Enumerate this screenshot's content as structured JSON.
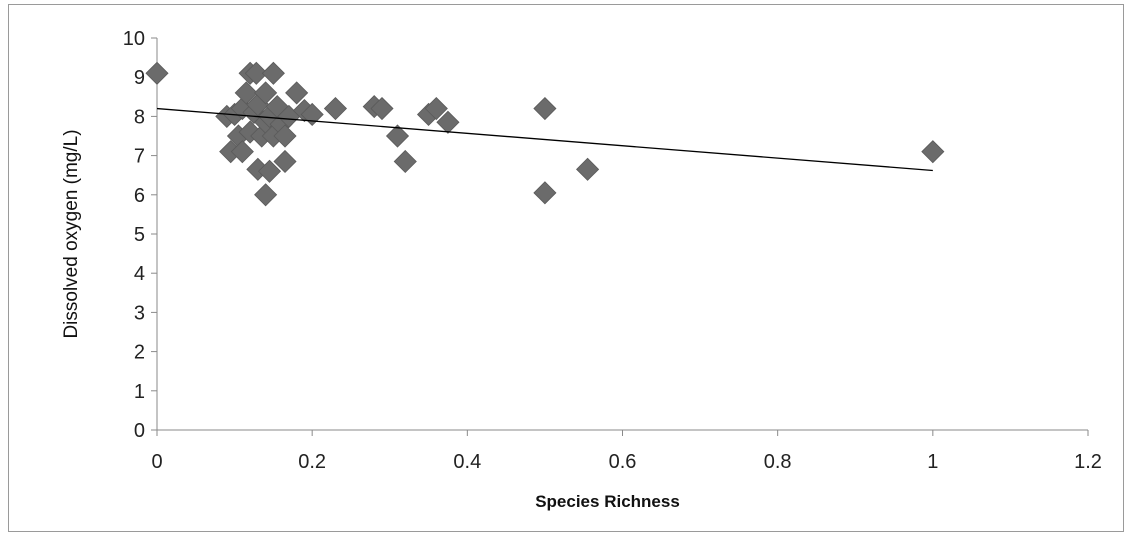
{
  "chart_data": {
    "type": "scatter",
    "title": "",
    "xlabel": "Species Richness",
    "ylabel": "Dissolved oxygen (mg/L)",
    "xlim": [
      0,
      1.2
    ],
    "ylim": [
      0,
      10
    ],
    "x_ticks": [
      "0",
      "0.2",
      "0.4",
      "0.6",
      "0.8",
      "1",
      "1.2"
    ],
    "y_ticks": [
      "0",
      "1",
      "2",
      "3",
      "4",
      "5",
      "6",
      "7",
      "8",
      "9",
      "10"
    ],
    "grid": false,
    "legend": "none",
    "marker": "diamond",
    "marker_color": "#6b6b6b",
    "trendline": {
      "type": "linear",
      "x": [
        0,
        1
      ],
      "y": [
        8.2,
        6.62
      ],
      "color": "#000000"
    },
    "points": [
      {
        "x": 0.0,
        "y": 9.1
      },
      {
        "x": 0.09,
        "y": 8.0
      },
      {
        "x": 0.095,
        "y": 7.1
      },
      {
        "x": 0.1,
        "y": 8.05
      },
      {
        "x": 0.105,
        "y": 7.5
      },
      {
        "x": 0.11,
        "y": 7.1
      },
      {
        "x": 0.11,
        "y": 8.2
      },
      {
        "x": 0.115,
        "y": 8.6
      },
      {
        "x": 0.12,
        "y": 9.1
      },
      {
        "x": 0.12,
        "y": 7.6
      },
      {
        "x": 0.125,
        "y": 8.1
      },
      {
        "x": 0.128,
        "y": 9.1
      },
      {
        "x": 0.13,
        "y": 6.65
      },
      {
        "x": 0.13,
        "y": 8.3
      },
      {
        "x": 0.135,
        "y": 7.5
      },
      {
        "x": 0.14,
        "y": 6.0
      },
      {
        "x": 0.14,
        "y": 8.6
      },
      {
        "x": 0.14,
        "y": 7.85
      },
      {
        "x": 0.145,
        "y": 6.6
      },
      {
        "x": 0.145,
        "y": 8.0
      },
      {
        "x": 0.15,
        "y": 9.1
      },
      {
        "x": 0.15,
        "y": 7.5
      },
      {
        "x": 0.155,
        "y": 8.25
      },
      {
        "x": 0.16,
        "y": 7.8
      },
      {
        "x": 0.165,
        "y": 7.5
      },
      {
        "x": 0.165,
        "y": 6.85
      },
      {
        "x": 0.17,
        "y": 8.0
      },
      {
        "x": 0.18,
        "y": 8.6
      },
      {
        "x": 0.19,
        "y": 8.15
      },
      {
        "x": 0.2,
        "y": 8.05
      },
      {
        "x": 0.23,
        "y": 8.2
      },
      {
        "x": 0.28,
        "y": 8.25
      },
      {
        "x": 0.29,
        "y": 8.2
      },
      {
        "x": 0.31,
        "y": 7.5
      },
      {
        "x": 0.32,
        "y": 6.85
      },
      {
        "x": 0.35,
        "y": 8.05
      },
      {
        "x": 0.36,
        "y": 8.2
      },
      {
        "x": 0.375,
        "y": 7.85
      },
      {
        "x": 0.5,
        "y": 8.2
      },
      {
        "x": 0.5,
        "y": 6.05
      },
      {
        "x": 0.555,
        "y": 6.65
      },
      {
        "x": 1.0,
        "y": 7.1
      }
    ]
  }
}
